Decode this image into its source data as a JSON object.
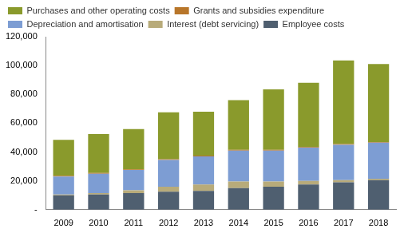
{
  "chart_data": {
    "type": "bar",
    "stacked": true,
    "grid": false,
    "legend": "top",
    "categories": [
      "2009",
      "2010",
      "2011",
      "2012",
      "2013",
      "2014",
      "2015",
      "2016",
      "2017",
      "2018"
    ],
    "series": [
      {
        "name": "Employee costs",
        "color": "#4f5f70",
        "values": [
          10000,
          10500,
          11500,
          12500,
          13000,
          15000,
          16000,
          17500,
          19000,
          20500
        ]
      },
      {
        "name": "Interest (debt servicing)",
        "color": "#b8ab7a",
        "values": [
          500,
          1000,
          2000,
          3500,
          4500,
          4500,
          3500,
          2500,
          1500,
          1000
        ]
      },
      {
        "name": "Depreciation and amortisation",
        "color": "#7d9dd3",
        "values": [
          12500,
          13500,
          14000,
          18500,
          19500,
          21500,
          21500,
          23000,
          24500,
          25000
        ]
      },
      {
        "name": "Grants and subsidies expenditure",
        "color": "#b8762a",
        "values": [
          500,
          500,
          500,
          500,
          500,
          500,
          500,
          500,
          500,
          500
        ]
      },
      {
        "name": "Purchases and other operating costs",
        "color": "#8a9a2c",
        "values": [
          25000,
          27000,
          28000,
          32500,
          30500,
          34500,
          42000,
          44500,
          58000,
          54000
        ]
      }
    ],
    "ylim": [
      0,
      120000
    ],
    "yticks": [
      {
        "value": 0,
        "label": "-"
      },
      {
        "value": 20000,
        "label": "20,000"
      },
      {
        "value": 40000,
        "label": "40,000"
      },
      {
        "value": 60000,
        "label": "60,000"
      },
      {
        "value": 80000,
        "label": "80,000"
      },
      {
        "value": 100000,
        "label": "100,000"
      },
      {
        "value": 120000,
        "label": "120,000"
      }
    ]
  }
}
